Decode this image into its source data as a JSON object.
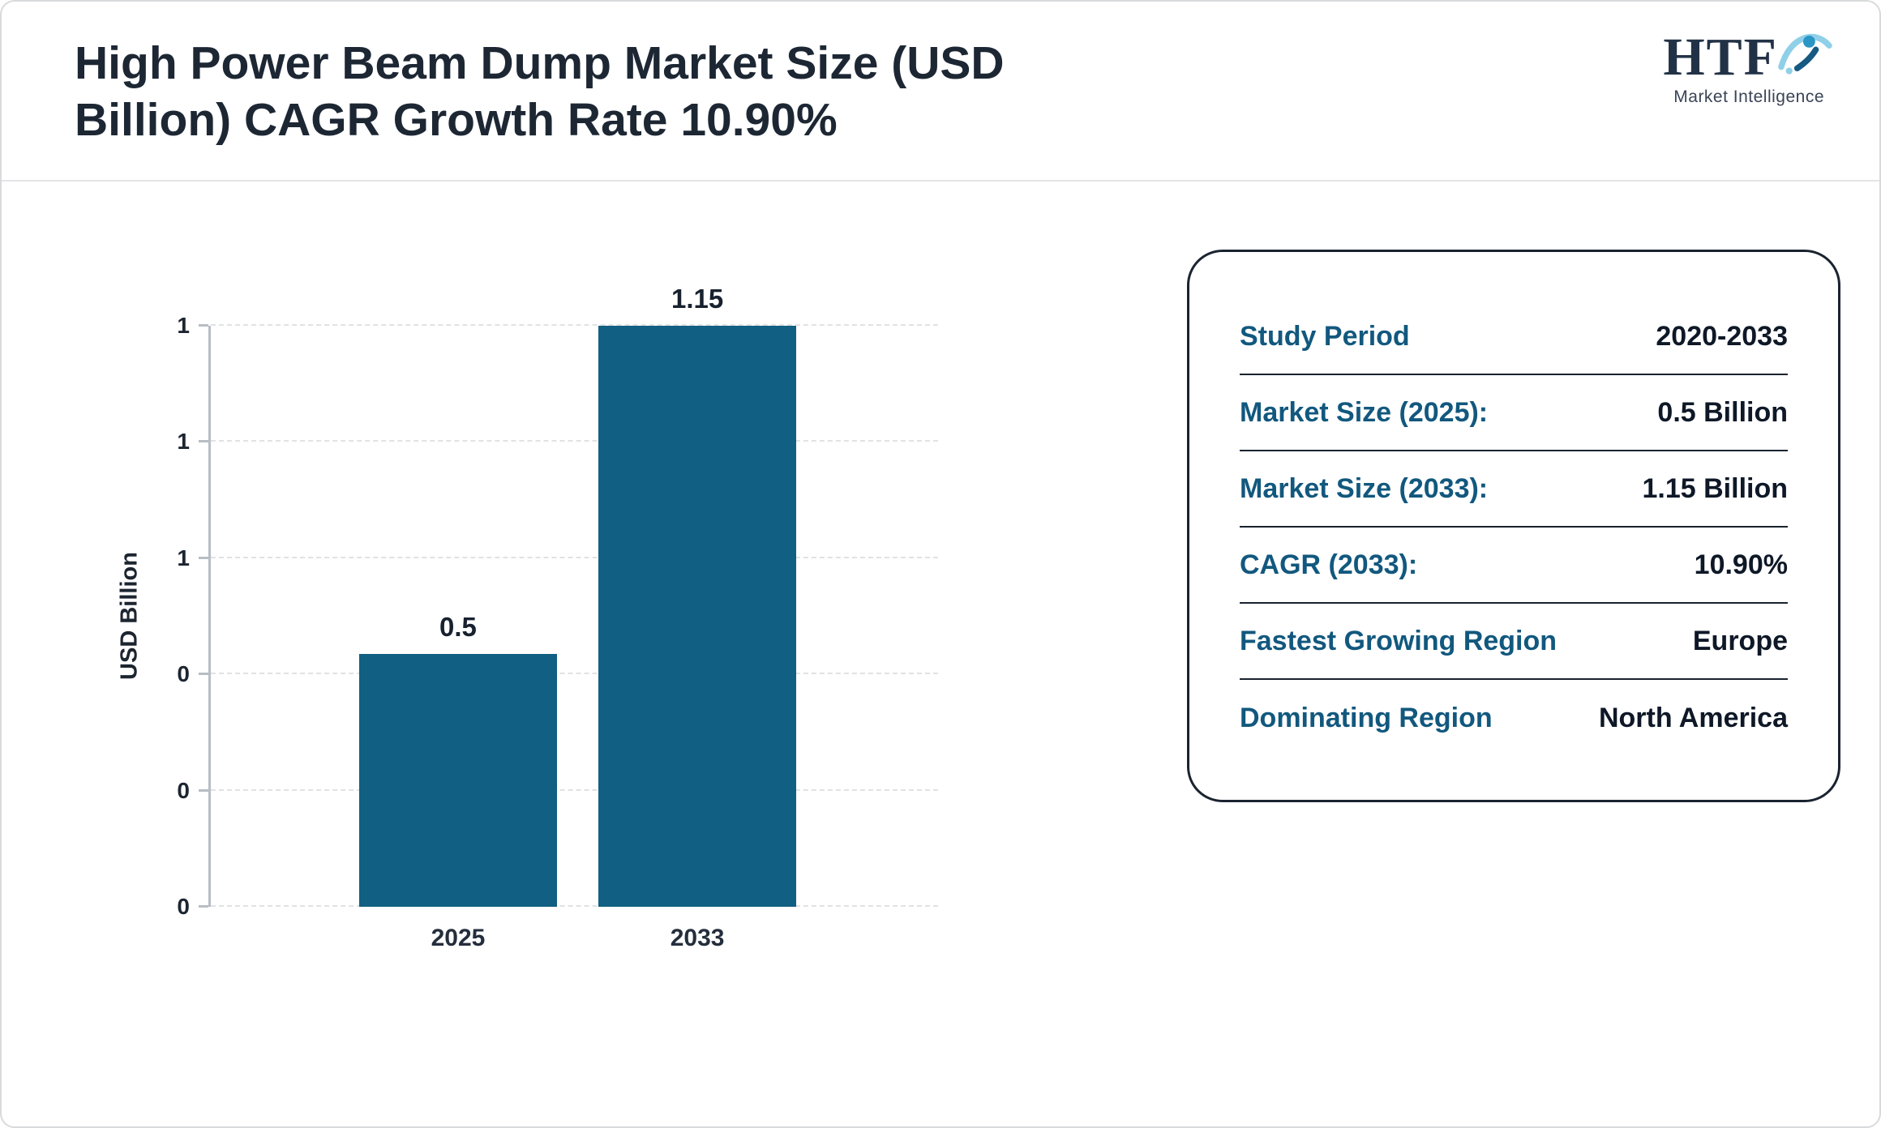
{
  "header": {
    "title": "High Power Beam Dump Market Size (USD Billion) CAGR Growth Rate 10.90%",
    "logo_text": "HTF",
    "logo_subtitle": "Market Intelligence"
  },
  "chart_data": {
    "type": "bar",
    "title": "High Power Beam Dump Market Size (USD Billion) CAGR Growth Rate 10.90%",
    "categories": [
      "2025",
      "2033"
    ],
    "values": [
      0.5,
      1.15
    ],
    "value_labels": [
      "0.5",
      "1.15"
    ],
    "xlabel": "",
    "ylabel": "USD Billion",
    "ylim": [
      0,
      1.15
    ],
    "yticks_bottom_to_top": [
      "0",
      "0",
      "0",
      "1",
      "1",
      "1"
    ],
    "grid": "horizontal-dashed",
    "legend": "none",
    "bar_color": "#115f82"
  },
  "info_card": {
    "rows": [
      {
        "label": "Study Period",
        "value": "2020-2033"
      },
      {
        "label": "Market Size (2025):",
        "value": "0.5 Billion"
      },
      {
        "label": "Market Size (2033):",
        "value": "1.15 Billion"
      },
      {
        "label": "CAGR (2033):",
        "value": "10.90%"
      },
      {
        "label": "Fastest Growing Region",
        "value": "Europe"
      },
      {
        "label": "Dominating Region",
        "value": "North America"
      }
    ]
  },
  "colors": {
    "bar": "#115f82",
    "teal": "#12587e",
    "navy": "#1d2734",
    "dark": "#0e1827"
  }
}
